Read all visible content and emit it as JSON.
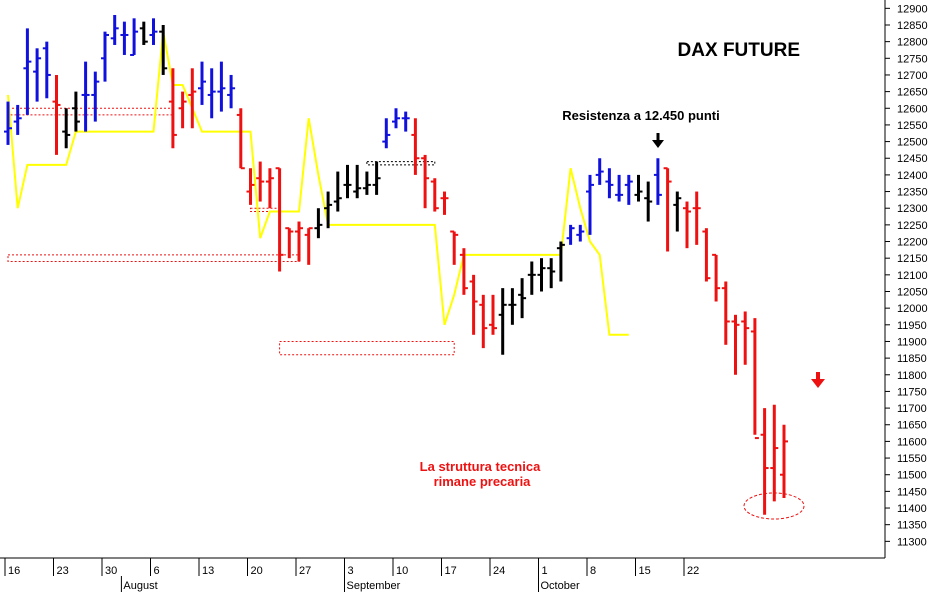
{
  "chart_data": {
    "type": "ohlc",
    "title": "DAX FUTURE",
    "annotations": {
      "resistance": "Resistenza a 12.450 punti",
      "structure_line1": "La struttura tecnica",
      "structure_line2": "rimane precaria"
    },
    "y_axis": {
      "min": 11250,
      "max": 12925,
      "step": 50,
      "tick_start": 11300,
      "tick_end": 12900,
      "side": "right"
    },
    "x_axis": {
      "ticks": [
        {
          "label": "16",
          "i": 0
        },
        {
          "label": "23",
          "i": 5
        },
        {
          "label": "30",
          "i": 10
        },
        {
          "label": "6",
          "i": 15
        },
        {
          "label": "13",
          "i": 20
        },
        {
          "label": "20",
          "i": 25
        },
        {
          "label": "27",
          "i": 30
        },
        {
          "label": "3",
          "i": 35
        },
        {
          "label": "10",
          "i": 40
        },
        {
          "label": "17",
          "i": 45
        },
        {
          "label": "24",
          "i": 50
        },
        {
          "label": "1",
          "i": 55
        },
        {
          "label": "8",
          "i": 60
        },
        {
          "label": "15",
          "i": 65
        },
        {
          "label": "22",
          "i": 70
        }
      ],
      "months": [
        {
          "label": "August",
          "i": 12
        },
        {
          "label": "September",
          "i": 35
        },
        {
          "label": "October",
          "i": 55
        }
      ]
    },
    "colors": {
      "up": "#1111dd",
      "down": "#ee1111",
      "neutral": "#000000",
      "envelope": "#ffff00",
      "zone": "#ee1111",
      "accent": "#ee1111",
      "background": "#ffffff"
    },
    "bars": [
      {
        "o": 12530,
        "h": 12620,
        "l": 12490,
        "c": 12540,
        "color": "up"
      },
      {
        "o": 12560,
        "h": 12610,
        "l": 12520,
        "c": 12570,
        "color": "up"
      },
      {
        "o": 12720,
        "h": 12840,
        "l": 12580,
        "c": 12740,
        "color": "up"
      },
      {
        "o": 12710,
        "h": 12780,
        "l": 12620,
        "c": 12750,
        "color": "up"
      },
      {
        "o": 12780,
        "h": 12800,
        "l": 12630,
        "c": 12700,
        "color": "up"
      },
      {
        "o": 12620,
        "h": 12700,
        "l": 12460,
        "c": 12610,
        "color": "down"
      },
      {
        "o": 12530,
        "h": 12600,
        "l": 12480,
        "c": 12520,
        "color": "neutral"
      },
      {
        "o": 12600,
        "h": 12650,
        "l": 12530,
        "c": 12560,
        "color": "neutral"
      },
      {
        "o": 12640,
        "h": 12740,
        "l": 12530,
        "c": 12640,
        "color": "up"
      },
      {
        "o": 12640,
        "h": 12710,
        "l": 12560,
        "c": 12680,
        "color": "up"
      },
      {
        "o": 12750,
        "h": 12830,
        "l": 12680,
        "c": 12820,
        "color": "up"
      },
      {
        "o": 12810,
        "h": 12880,
        "l": 12790,
        "c": 12840,
        "color": "up"
      },
      {
        "o": 12820,
        "h": 12860,
        "l": 12760,
        "c": 12820,
        "color": "up"
      },
      {
        "o": 12760,
        "h": 12870,
        "l": 12760,
        "c": 12830,
        "color": "up"
      },
      {
        "o": 12840,
        "h": 12860,
        "l": 12790,
        "c": 12800,
        "color": "neutral"
      },
      {
        "o": 12820,
        "h": 12870,
        "l": 12790,
        "c": 12830,
        "color": "up"
      },
      {
        "o": 12830,
        "h": 12850,
        "l": 12700,
        "c": 12720,
        "color": "neutral"
      },
      {
        "o": 12620,
        "h": 12720,
        "l": 12480,
        "c": 12520,
        "color": "down"
      },
      {
        "o": 12600,
        "h": 12650,
        "l": 12540,
        "c": 12620,
        "color": "down"
      },
      {
        "o": 12640,
        "h": 12720,
        "l": 12540,
        "c": 12650,
        "color": "down"
      },
      {
        "o": 12660,
        "h": 12740,
        "l": 12610,
        "c": 12680,
        "color": "up"
      },
      {
        "o": 12640,
        "h": 12720,
        "l": 12570,
        "c": 12650,
        "color": "up"
      },
      {
        "o": 12650,
        "h": 12740,
        "l": 12590,
        "c": 12660,
        "color": "up"
      },
      {
        "o": 12640,
        "h": 12700,
        "l": 12600,
        "c": 12660,
        "color": "up"
      },
      {
        "o": 12580,
        "h": 12600,
        "l": 12420,
        "c": 12420,
        "color": "down"
      },
      {
        "o": 12350,
        "h": 12420,
        "l": 12310,
        "c": 12370,
        "color": "down"
      },
      {
        "o": 12390,
        "h": 12440,
        "l": 12320,
        "c": 12380,
        "color": "down"
      },
      {
        "o": 12380,
        "h": 12420,
        "l": 12300,
        "c": 12390,
        "color": "down"
      },
      {
        "o": 12420,
        "h": 12420,
        "l": 12110,
        "c": 12160,
        "color": "down"
      },
      {
        "o": 12240,
        "h": 12240,
        "l": 12150,
        "c": 12230,
        "color": "down"
      },
      {
        "o": 12230,
        "h": 12260,
        "l": 12140,
        "c": 12240,
        "color": "down"
      },
      {
        "o": 12220,
        "h": 12240,
        "l": 12130,
        "c": 12240,
        "color": "down"
      },
      {
        "o": 12240,
        "h": 12300,
        "l": 12210,
        "c": 12250,
        "color": "neutral"
      },
      {
        "o": 12300,
        "h": 12350,
        "l": 12240,
        "c": 12310,
        "color": "neutral"
      },
      {
        "o": 12320,
        "h": 12410,
        "l": 12290,
        "c": 12330,
        "color": "neutral"
      },
      {
        "o": 12370,
        "h": 12430,
        "l": 12330,
        "c": 12370,
        "color": "neutral"
      },
      {
        "o": 12350,
        "h": 12430,
        "l": 12330,
        "c": 12360,
        "color": "neutral"
      },
      {
        "o": 12360,
        "h": 12410,
        "l": 12340,
        "c": 12370,
        "color": "neutral"
      },
      {
        "o": 12370,
        "h": 12440,
        "l": 12340,
        "c": 12390,
        "color": "neutral"
      },
      {
        "o": 12500,
        "h": 12570,
        "l": 12480,
        "c": 12520,
        "color": "up"
      },
      {
        "o": 12560,
        "h": 12600,
        "l": 12540,
        "c": 12570,
        "color": "up"
      },
      {
        "o": 12570,
        "h": 12590,
        "l": 12530,
        "c": 12570,
        "color": "up"
      },
      {
        "o": 12520,
        "h": 12570,
        "l": 12400,
        "c": 12450,
        "color": "down"
      },
      {
        "o": 12450,
        "h": 12460,
        "l": 12300,
        "c": 12390,
        "color": "down"
      },
      {
        "o": 12380,
        "h": 12390,
        "l": 12290,
        "c": 12300,
        "color": "down"
      },
      {
        "o": 12330,
        "h": 12350,
        "l": 12280,
        "c": 12330,
        "color": "down"
      },
      {
        "o": 12230,
        "h": 12230,
        "l": 12130,
        "c": 12220,
        "color": "down"
      },
      {
        "o": 12160,
        "h": 12180,
        "l": 12040,
        "c": 12060,
        "color": "down"
      },
      {
        "o": 12080,
        "h": 12100,
        "l": 11920,
        "c": 12020,
        "color": "down"
      },
      {
        "o": 12010,
        "h": 12040,
        "l": 11880,
        "c": 11940,
        "color": "down"
      },
      {
        "o": 11950,
        "h": 12040,
        "l": 11920,
        "c": 11940,
        "color": "down"
      },
      {
        "o": 11980,
        "h": 12060,
        "l": 11860,
        "c": 12010,
        "color": "neutral"
      },
      {
        "o": 12010,
        "h": 12060,
        "l": 11950,
        "c": 12010,
        "color": "neutral"
      },
      {
        "o": 12040,
        "h": 12090,
        "l": 11970,
        "c": 12030,
        "color": "neutral"
      },
      {
        "o": 12100,
        "h": 12140,
        "l": 12040,
        "c": 12100,
        "color": "neutral"
      },
      {
        "o": 12100,
        "h": 12150,
        "l": 12050,
        "c": 12120,
        "color": "neutral"
      },
      {
        "o": 12120,
        "h": 12150,
        "l": 12060,
        "c": 12110,
        "color": "neutral"
      },
      {
        "o": 12180,
        "h": 12200,
        "l": 12080,
        "c": 12190,
        "color": "neutral"
      },
      {
        "o": 12210,
        "h": 12250,
        "l": 12190,
        "c": 12240,
        "color": "up"
      },
      {
        "o": 12220,
        "h": 12250,
        "l": 12200,
        "c": 12230,
        "color": "up"
      },
      {
        "o": 12350,
        "h": 12400,
        "l": 12220,
        "c": 12370,
        "color": "up"
      },
      {
        "o": 12400,
        "h": 12450,
        "l": 12370,
        "c": 12410,
        "color": "up"
      },
      {
        "o": 12380,
        "h": 12420,
        "l": 12330,
        "c": 12370,
        "color": "up"
      },
      {
        "o": 12340,
        "h": 12400,
        "l": 12320,
        "c": 12340,
        "color": "up"
      },
      {
        "o": 12370,
        "h": 12400,
        "l": 12310,
        "c": 12380,
        "color": "up"
      },
      {
        "o": 12340,
        "h": 12400,
        "l": 12320,
        "c": 12350,
        "color": "neutral"
      },
      {
        "o": 12330,
        "h": 12380,
        "l": 12260,
        "c": 12320,
        "color": "neutral"
      },
      {
        "o": 12400,
        "h": 12450,
        "l": 12310,
        "c": 12340,
        "color": "up"
      },
      {
        "o": 12420,
        "h": 12420,
        "l": 12170,
        "c": 12380,
        "color": "down"
      },
      {
        "o": 12310,
        "h": 12350,
        "l": 12230,
        "c": 12330,
        "color": "neutral"
      },
      {
        "o": 12300,
        "h": 12320,
        "l": 12180,
        "c": 12290,
        "color": "down"
      },
      {
        "o": 12300,
        "h": 12350,
        "l": 12190,
        "c": 12300,
        "color": "down"
      },
      {
        "o": 12230,
        "h": 12240,
        "l": 12080,
        "c": 12090,
        "color": "down"
      },
      {
        "o": 12160,
        "h": 12160,
        "l": 12020,
        "c": 12060,
        "color": "down"
      },
      {
        "o": 12060,
        "h": 12080,
        "l": 11890,
        "c": 11960,
        "color": "down"
      },
      {
        "o": 11960,
        "h": 11980,
        "l": 11800,
        "c": 11950,
        "color": "down"
      },
      {
        "o": 11960,
        "h": 11990,
        "l": 11830,
        "c": 11940,
        "color": "down"
      },
      {
        "o": 11930,
        "h": 11970,
        "l": 11620,
        "c": 11610,
        "color": "down"
      },
      {
        "o": 11620,
        "h": 11700,
        "l": 11380,
        "c": 11520,
        "color": "down"
      },
      {
        "o": 11520,
        "h": 11710,
        "l": 11420,
        "c": 11580,
        "color": "down"
      },
      {
        "o": 11500,
        "h": 11650,
        "l": 11430,
        "c": 11600,
        "color": "down"
      }
    ],
    "envelope": [
      12640,
      12300,
      12430,
      12430,
      12430,
      12430,
      12430,
      12530,
      12530,
      12530,
      12530,
      12530,
      12530,
      12530,
      12530,
      12530,
      12830,
      12670,
      12670,
      12600,
      12530,
      12530,
      12530,
      12530,
      12530,
      12530,
      12210,
      12290,
      12290,
      12290,
      12290,
      12570,
      12400,
      12250,
      12250,
      12250,
      12250,
      12250,
      12250,
      12250,
      12250,
      12250,
      12250,
      12250,
      12250,
      11950,
      12040,
      12160,
      12160,
      12160,
      12160,
      12160,
      12160,
      12160,
      12160,
      12160,
      12160,
      12160,
      12420,
      12300,
      12200,
      12160,
      11920,
      11920,
      11920
    ],
    "zones": [
      {
        "y1": 12580,
        "y2": 12600,
        "x1": 0,
        "x2": 17
      },
      {
        "y1": 12160,
        "y2": 12140,
        "x1": 0,
        "x2": 30
      },
      {
        "y1": 12290,
        "y2": 12300,
        "x1": 25,
        "x2": 28
      },
      {
        "y1": 11860,
        "y2": 11900,
        "x1": 28,
        "x2": 46
      },
      {
        "y1": 12430,
        "y2": 12440,
        "x1": 37,
        "x2": 44
      }
    ]
  }
}
